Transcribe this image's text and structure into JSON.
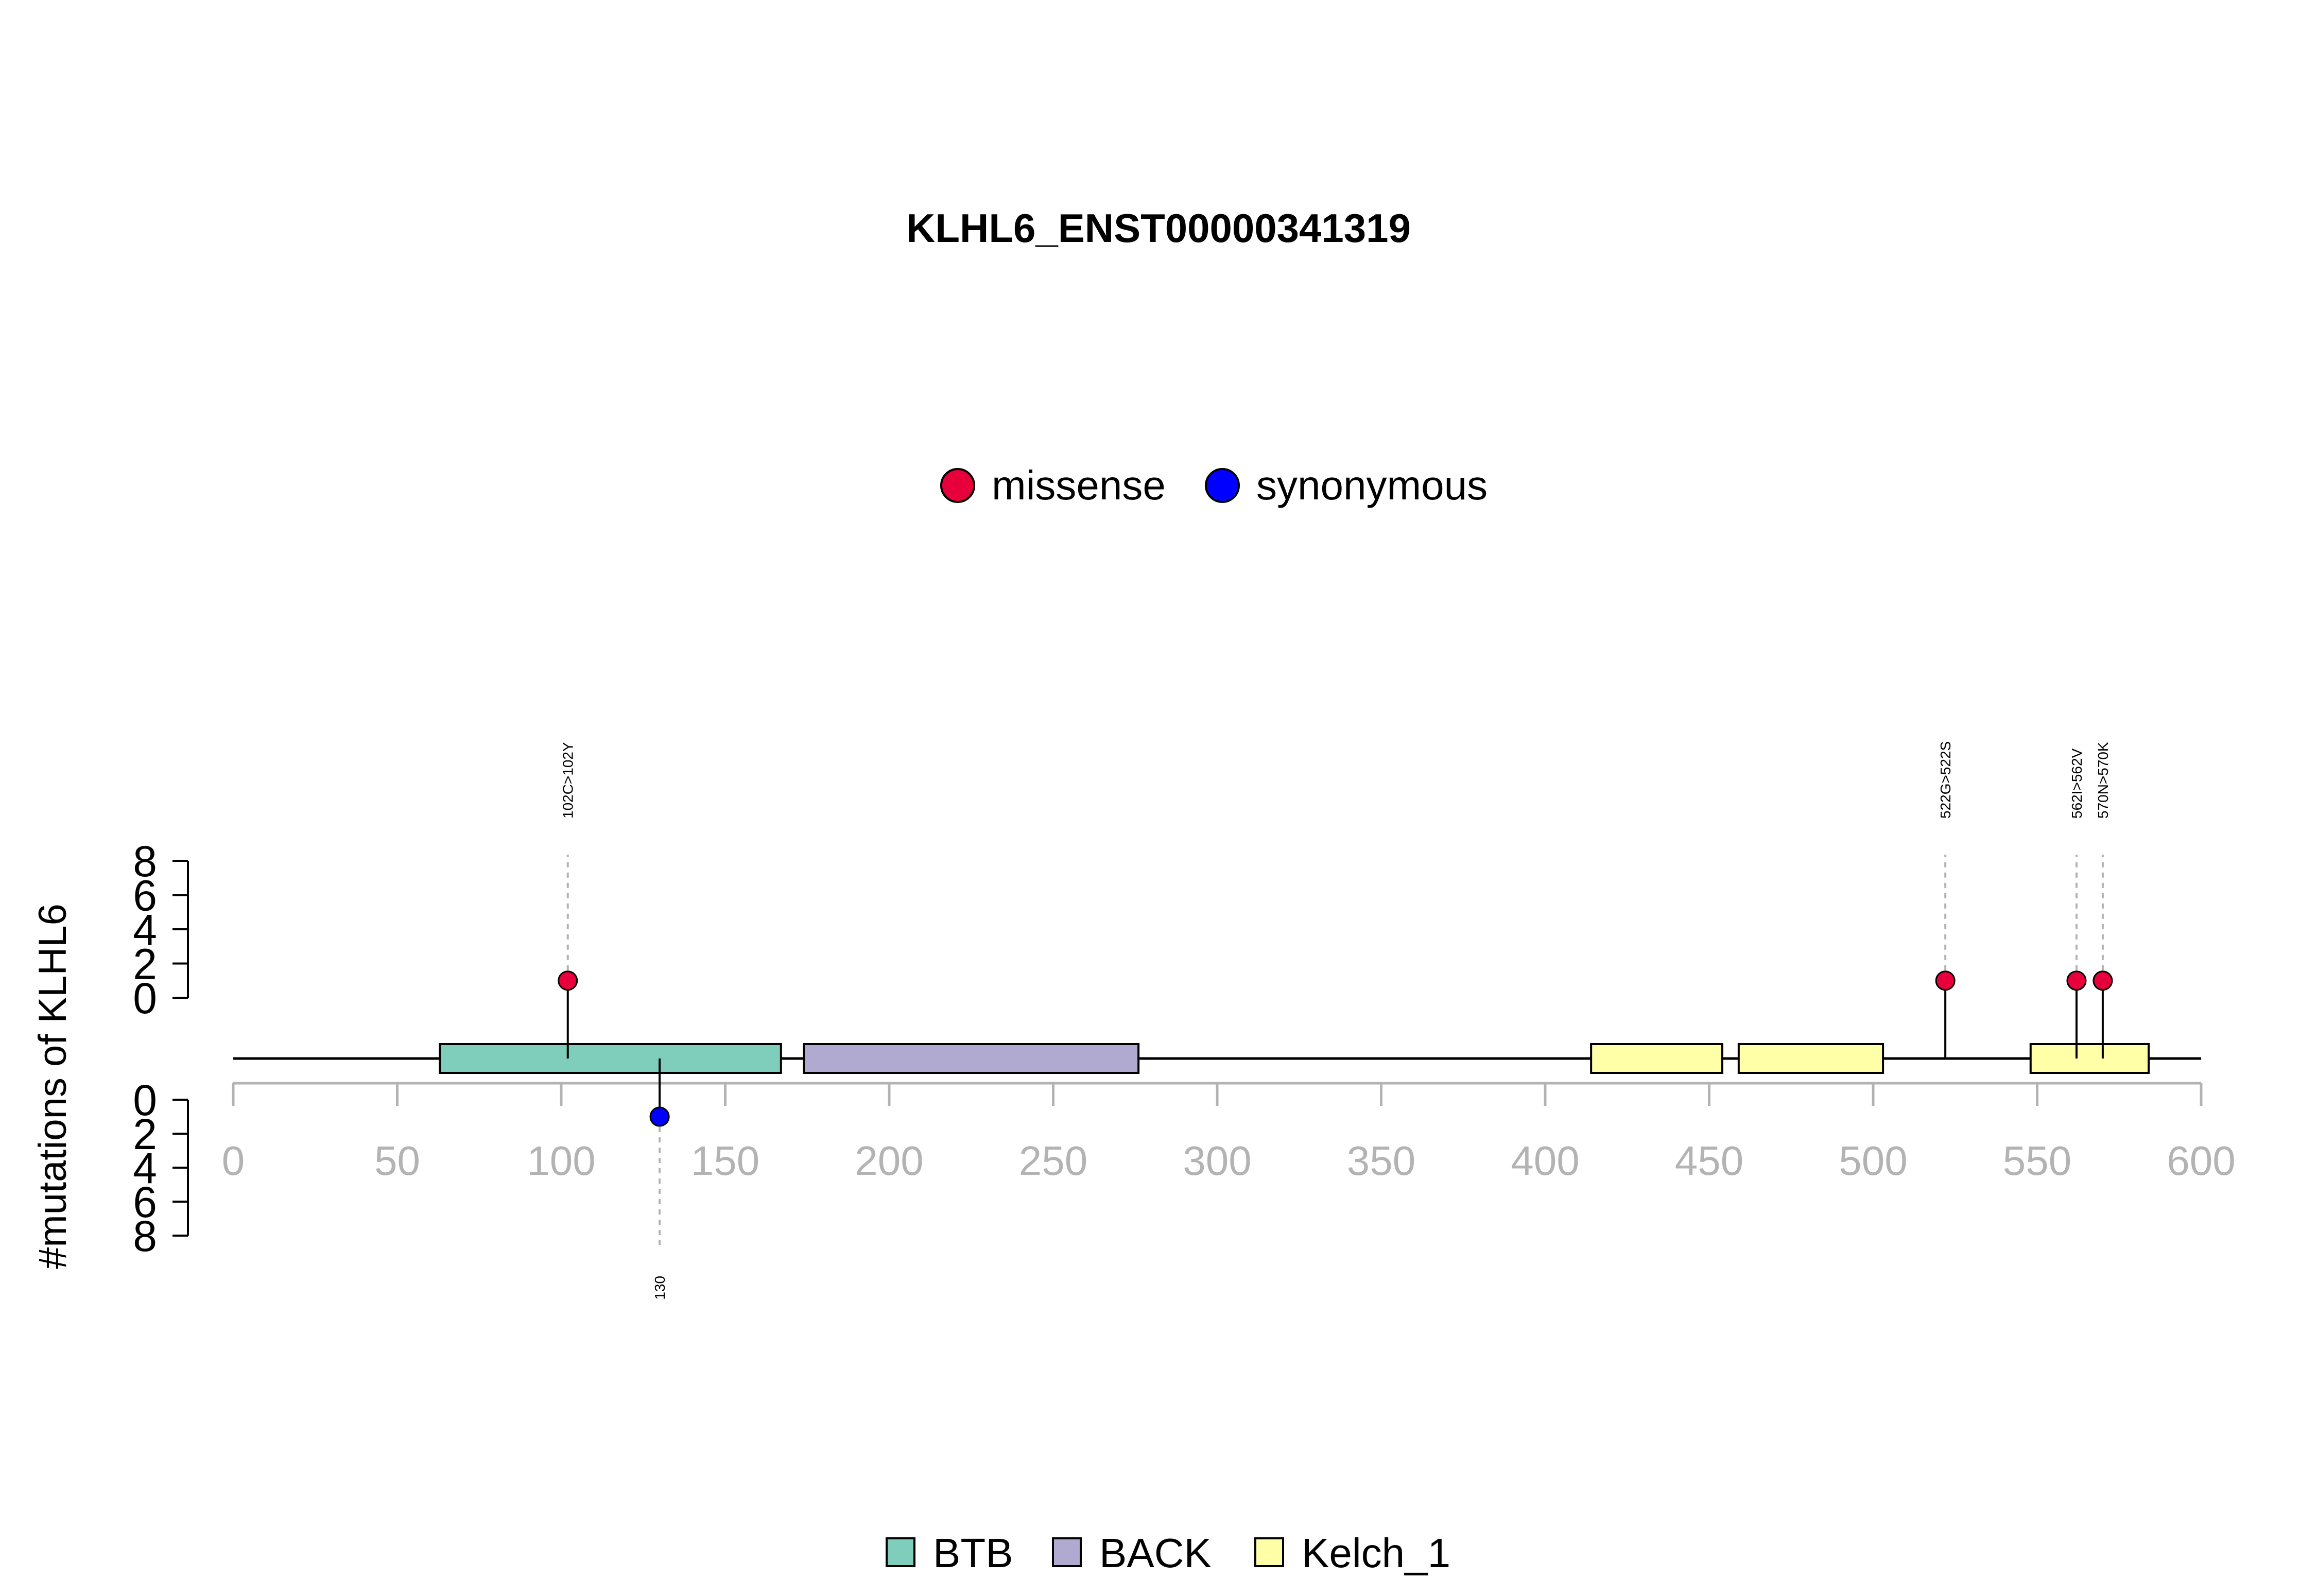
{
  "chart_data": {
    "type": "lollipop",
    "title": "KLHL6_ENST00000341319",
    "ylabel": "#mutations of KLHL6",
    "xlim": [
      0,
      600
    ],
    "x_ticks": [
      0,
      50,
      100,
      150,
      200,
      250,
      300,
      350,
      400,
      450,
      500,
      550,
      600
    ],
    "y_ticks_upper": [
      "0",
      "2",
      "4",
      "6",
      "8"
    ],
    "y_ticks_lower": [
      "0",
      "2",
      "4",
      "6",
      "8"
    ],
    "ylim": [
      0,
      8
    ],
    "mutation_legend": [
      {
        "name": "missense",
        "color": "#e8003c"
      },
      {
        "name": "synonymous",
        "color": "#0000ff"
      }
    ],
    "domain_legend": [
      {
        "name": "BTB",
        "color": "#7fcdbb"
      },
      {
        "name": "BACK",
        "color": "#b0aad0"
      },
      {
        "name": "Kelch_1",
        "color": "#ffffa8"
      }
    ],
    "domains": [
      {
        "name": "BTB",
        "start": 63,
        "end": 167
      },
      {
        "name": "BACK",
        "start": 174,
        "end": 276
      },
      {
        "name": "Kelch_1",
        "start": 414,
        "end": 454
      },
      {
        "name": "Kelch_1",
        "start": 459,
        "end": 503
      },
      {
        "name": "Kelch_1",
        "start": 548,
        "end": 584
      }
    ],
    "mutations": [
      {
        "position": 102,
        "count": 1,
        "type": "missense",
        "label": "102C>102Y"
      },
      {
        "position": 522,
        "count": 1,
        "type": "missense",
        "label": "522G>522S"
      },
      {
        "position": 562,
        "count": 1,
        "type": "missense",
        "label": "562I>562V"
      },
      {
        "position": 570,
        "count": 1,
        "type": "missense",
        "label": "570N>570K"
      },
      {
        "position": 130,
        "count": 1,
        "type": "synonymous",
        "label": "130"
      }
    ]
  }
}
